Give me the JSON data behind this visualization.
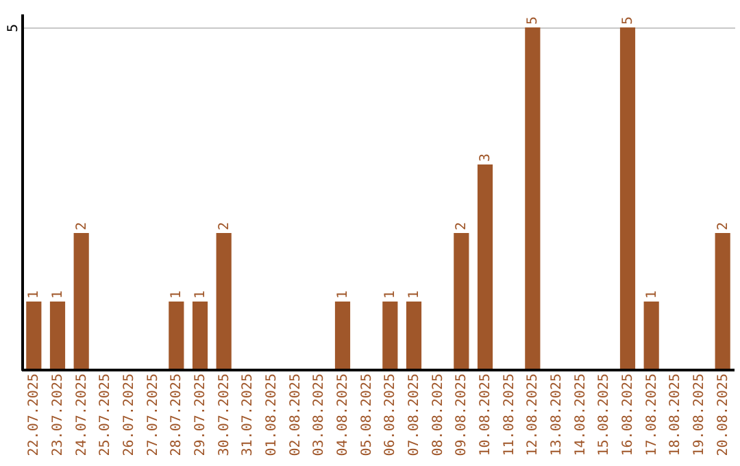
{
  "chart_data": {
    "type": "bar",
    "categories": [
      "22.07.2025",
      "23.07.2025",
      "24.07.2025",
      "25.07.2025",
      "26.07.2025",
      "27.07.2025",
      "28.07.2025",
      "29.07.2025",
      "30.07.2025",
      "31.07.2025",
      "01.08.2025",
      "02.08.2025",
      "03.08.2025",
      "04.08.2025",
      "05.08.2025",
      "06.08.2025",
      "07.08.2025",
      "08.08.2025",
      "09.08.2025",
      "10.08.2025",
      "11.08.2025",
      "12.08.2025",
      "13.08.2025",
      "14.08.2025",
      "15.08.2025",
      "16.08.2025",
      "17.08.2025",
      "18.08.2025",
      "19.08.2025",
      "20.08.2025"
    ],
    "values": [
      1,
      1,
      2,
      0,
      0,
      0,
      1,
      1,
      2,
      0,
      0,
      0,
      0,
      1,
      0,
      1,
      1,
      0,
      2,
      3,
      0,
      5,
      0,
      0,
      0,
      5,
      1,
      0,
      0,
      2
    ],
    "value_labels": [
      "1",
      "1",
      "2",
      null,
      null,
      null,
      "1",
      "1",
      "2",
      null,
      null,
      null,
      null,
      "1",
      null,
      "1",
      "1",
      null,
      "2",
      "3",
      null,
      "5",
      null,
      null,
      null,
      "5",
      "1",
      null,
      null,
      "2"
    ],
    "color": "#a0572a",
    "ylim": [
      0,
      5.2
    ],
    "yticks": [
      5
    ],
    "grid": "y"
  }
}
